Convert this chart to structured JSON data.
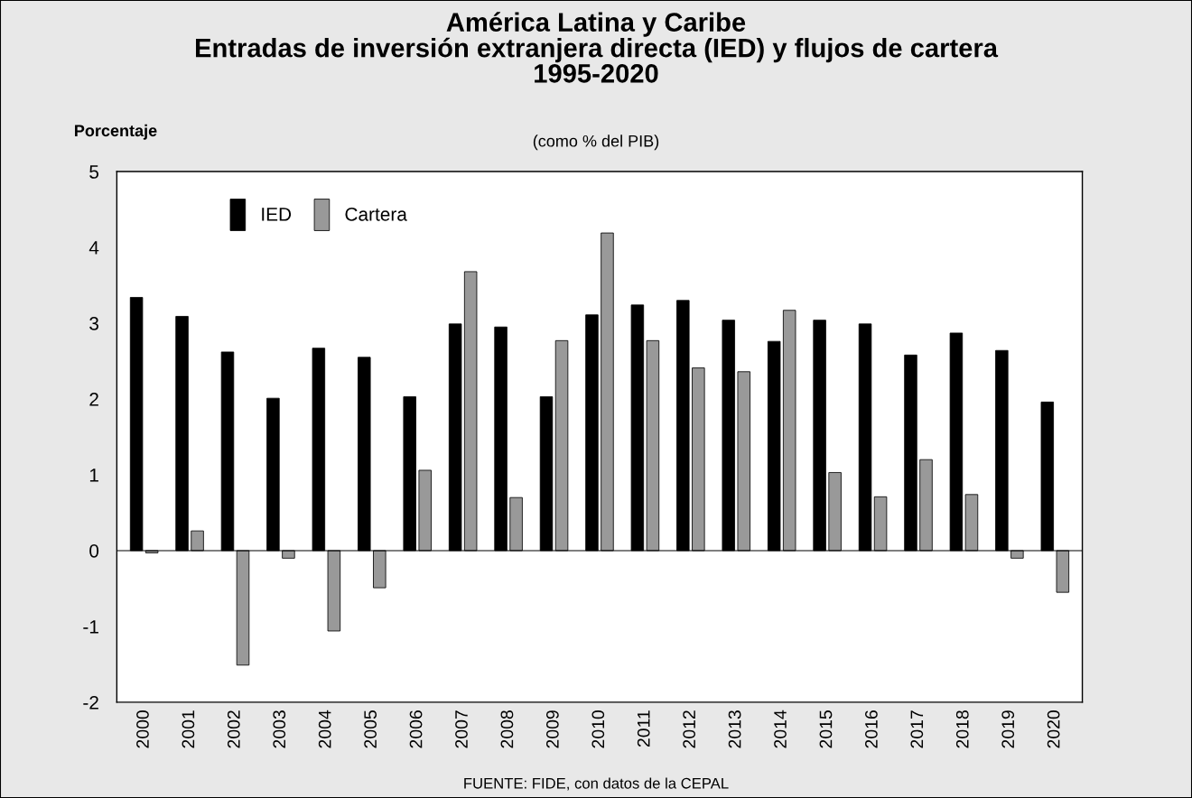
{
  "chart_data": {
    "type": "bar",
    "title": "América Latina y Caribe\nEntradas de inversión extranjera directa (IED) y flujos de cartera\n1995-2020",
    "subtitle": "(como % del PIB)",
    "ylabel": "Porcentaje",
    "annotations": [
      "FUENTE: FIDE, con datos de la CEPAL"
    ],
    "categories": [
      "2000",
      "2001",
      "2002",
      "2003",
      "2004",
      "2005",
      "2006",
      "2007",
      "2008",
      "2009",
      "2010",
      "2011",
      "2012",
      "2013",
      "2014",
      "2015",
      "2016",
      "2017",
      "2018",
      "2019",
      "2020"
    ],
    "series": [
      {
        "name": "IED",
        "color": "#000000",
        "values": [
          3.34,
          3.09,
          2.62,
          2.01,
          2.67,
          2.55,
          2.03,
          2.99,
          2.95,
          2.03,
          3.11,
          3.24,
          3.3,
          3.04,
          2.76,
          3.04,
          2.99,
          2.58,
          2.87,
          2.64,
          1.96
        ]
      },
      {
        "name": "Cartera",
        "color": "#999999",
        "values": [
          -0.03,
          0.26,
          -1.51,
          -0.1,
          -1.06,
          -0.49,
          1.06,
          3.68,
          0.7,
          2.77,
          4.19,
          2.77,
          2.41,
          2.36,
          3.17,
          1.03,
          0.71,
          1.2,
          0.74,
          -0.1,
          -0.55
        ]
      }
    ],
    "ylim": [
      -2,
      5
    ],
    "yticks": [
      -2,
      -1,
      0,
      1,
      2,
      3,
      4,
      5
    ],
    "ref_lines": [
      {
        "axis": "y",
        "value": 0,
        "color": "#000000"
      }
    ],
    "grid": false,
    "legend": "top left"
  }
}
